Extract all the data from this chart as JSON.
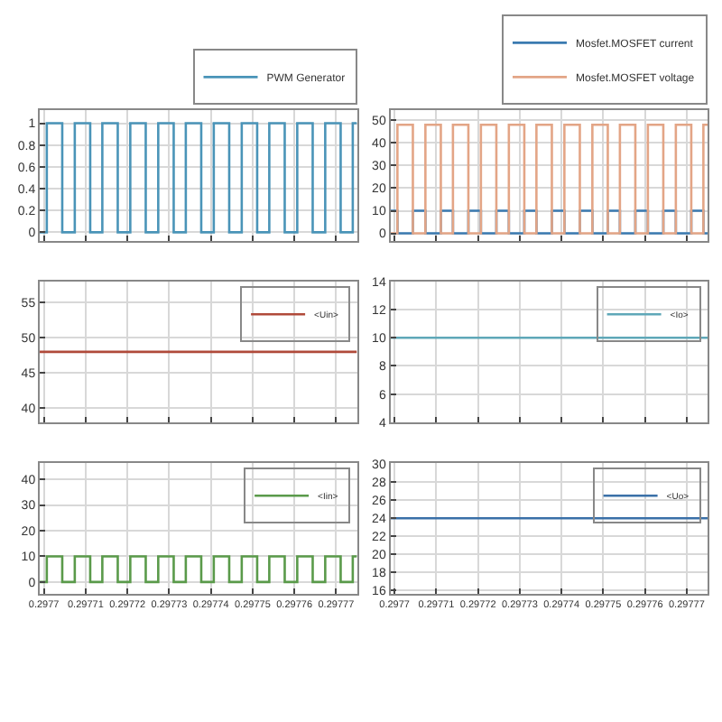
{
  "chart_data": [
    {
      "type": "step",
      "xlim": [
        0.297699,
        0.297775
      ],
      "xticks": [
        0.2977,
        0.29771,
        0.29772,
        0.29773,
        0.29774,
        0.29775,
        0.29776,
        0.29777
      ],
      "ylim": [
        -0.08,
        1.12
      ],
      "yticks": [
        0,
        0.2,
        0.4,
        0.6,
        0.8,
        1
      ],
      "grid": true,
      "legend": "top",
      "tick_labels": "y",
      "x": [
        0.297699,
        0.2977007,
        0.2977044,
        0.2977074,
        0.2977111,
        0.297714,
        0.2977177,
        0.2977207,
        0.2977244,
        0.2977274,
        0.2977311,
        0.297734,
        0.2977377,
        0.2977407,
        0.2977444,
        0.2977474,
        0.2977511,
        0.297754,
        0.2977577,
        0.2977607,
        0.2977644,
        0.2977674,
        0.2977711,
        0.297774,
        0.297775
      ],
      "series": [
        {
          "name": "PWM Generator",
          "color": "#4a94b8",
          "values": [
            0,
            1,
            0,
            1,
            0,
            1,
            0,
            1,
            0,
            1,
            0,
            1,
            0,
            1,
            0,
            1,
            0,
            1,
            0,
            1,
            0,
            1,
            0,
            1,
            1
          ]
        }
      ]
    },
    {
      "type": "step",
      "xlim": [
        0.297699,
        0.297775
      ],
      "xticks": [
        0.2977,
        0.29771,
        0.29772,
        0.29773,
        0.29774,
        0.29775,
        0.29776,
        0.29777
      ],
      "ylim": [
        -3.4,
        54.5
      ],
      "yticks": [
        0,
        10,
        20,
        30,
        40,
        50
      ],
      "grid": true,
      "legend": "top",
      "tick_labels": "y",
      "x": [
        0.297699,
        0.2977007,
        0.2977044,
        0.2977074,
        0.2977111,
        0.297714,
        0.2977177,
        0.2977207,
        0.2977244,
        0.2977274,
        0.2977311,
        0.297734,
        0.2977377,
        0.2977407,
        0.2977444,
        0.2977474,
        0.2977511,
        0.297754,
        0.2977577,
        0.2977607,
        0.2977644,
        0.2977674,
        0.2977711,
        0.297774,
        0.297775
      ],
      "series": [
        {
          "name": "Mosfet.MOSFET current",
          "color": "#3a7ab0",
          "values": [
            10,
            0,
            10,
            0,
            10,
            0,
            10,
            0,
            10,
            0,
            10,
            0,
            10,
            0,
            10,
            0,
            10,
            0,
            10,
            0,
            10,
            0,
            10,
            0,
            0
          ]
        },
        {
          "name": "Mosfet.MOSFET voltage",
          "color": "#e3a586",
          "values": [
            0,
            48,
            0,
            48,
            0,
            48,
            0,
            48,
            0,
            48,
            0,
            48,
            0,
            48,
            0,
            48,
            0,
            48,
            0,
            48,
            0,
            48,
            0,
            48,
            48
          ]
        }
      ]
    },
    {
      "type": "step",
      "xlim": [
        0.297699,
        0.297775
      ],
      "xticks": [
        0.2977,
        0.29771,
        0.29772,
        0.29773,
        0.29774,
        0.29775,
        0.29776,
        0.29777
      ],
      "ylim": [
        38,
        58
      ],
      "yticks": [
        40,
        45,
        50,
        55
      ],
      "grid": true,
      "legend": "top right",
      "tick_labels": "y",
      "x": [
        0.297699,
        0.297775
      ],
      "series": [
        {
          "name": "<Uin>",
          "color": "#b04a3a",
          "values": [
            48,
            48
          ]
        }
      ]
    },
    {
      "type": "step",
      "xlim": [
        0.297699,
        0.297775
      ],
      "xticks": [
        0.2977,
        0.29771,
        0.29772,
        0.29773,
        0.29774,
        0.29775,
        0.29776,
        0.29777
      ],
      "ylim": [
        4,
        14
      ],
      "yticks": [
        4,
        6,
        8,
        10,
        12,
        14
      ],
      "grid": true,
      "legend": "top right",
      "tick_labels": "y",
      "x": [
        0.297699,
        0.297775
      ],
      "series": [
        {
          "name": "<Io>",
          "color": "#5fa8b8",
          "values": [
            10,
            10
          ]
        }
      ]
    },
    {
      "type": "step",
      "xlim": [
        0.297699,
        0.297775
      ],
      "xticks": [
        0.2977,
        0.29771,
        0.29772,
        0.29773,
        0.29774,
        0.29775,
        0.29776,
        0.29777
      ],
      "ylim": [
        -4.5,
        46.5
      ],
      "yticks": [
        0,
        10,
        20,
        30,
        40
      ],
      "grid": true,
      "legend": "top right",
      "x": [
        0.297699,
        0.2977007,
        0.2977044,
        0.2977074,
        0.2977111,
        0.297714,
        0.2977177,
        0.2977207,
        0.2977244,
        0.2977274,
        0.2977311,
        0.297734,
        0.2977377,
        0.2977407,
        0.2977444,
        0.2977474,
        0.2977511,
        0.297754,
        0.2977577,
        0.2977607,
        0.2977644,
        0.2977674,
        0.2977711,
        0.297774,
        0.297775
      ],
      "series": [
        {
          "name": "<Iin>",
          "color": "#5a9a4a",
          "values": [
            0,
            10,
            0,
            10,
            0,
            10,
            0,
            10,
            0,
            10,
            0,
            10,
            0,
            10,
            0,
            10,
            0,
            10,
            0,
            10,
            0,
            10,
            0,
            10,
            10
          ]
        }
      ]
    },
    {
      "type": "step",
      "xlim": [
        0.297699,
        0.297775
      ],
      "xticks": [
        0.2977,
        0.29771,
        0.29772,
        0.29773,
        0.29774,
        0.29775,
        0.29776,
        0.29777
      ],
      "ylim": [
        15.6,
        30.2
      ],
      "yticks": [
        16,
        18,
        20,
        22,
        24,
        26,
        28,
        30
      ],
      "grid": true,
      "legend": "top right",
      "x": [
        0.297699,
        0.297775
      ],
      "series": [
        {
          "name": "<Uo>",
          "color": "#3a70a8",
          "values": [
            24,
            24
          ]
        }
      ]
    }
  ]
}
